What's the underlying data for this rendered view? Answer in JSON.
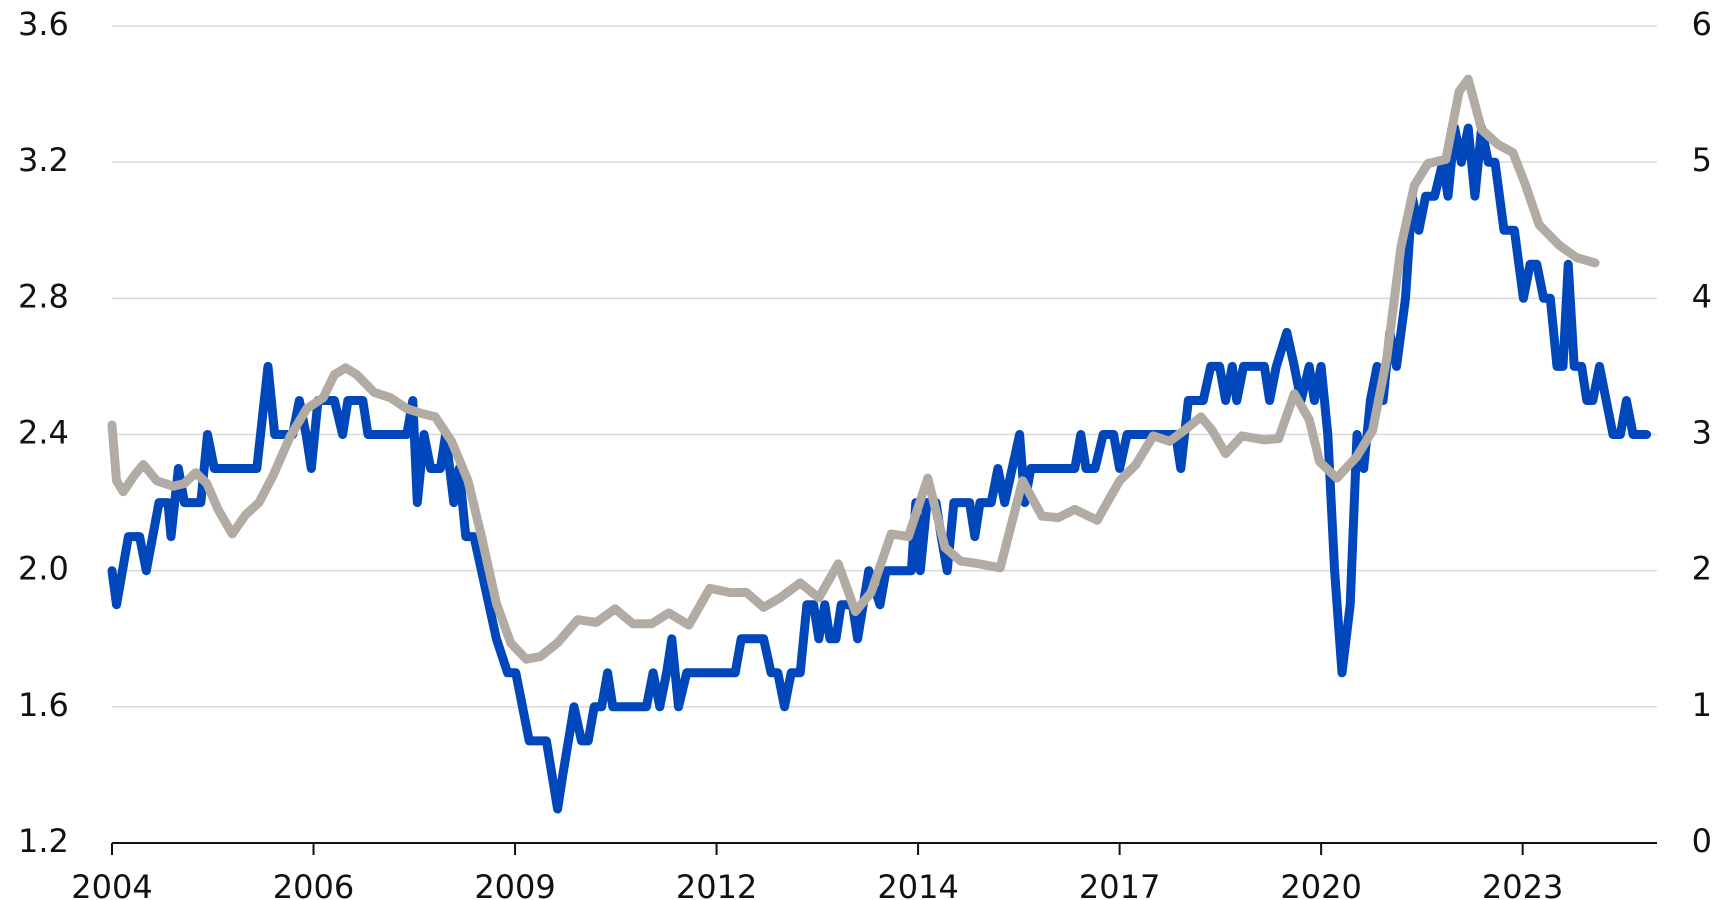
{
  "chart_data": {
    "type": "line",
    "grid": true,
    "xlim": [
      2004,
      2024.7
    ],
    "xticks": [
      {
        "value": 2004,
        "label": "2004"
      },
      {
        "value": 2006.7,
        "label": "2006"
      },
      {
        "value": 2009.4,
        "label": "2009"
      },
      {
        "value": 2012.1,
        "label": "2012"
      },
      {
        "value": 2014.8,
        "label": "2014"
      },
      {
        "value": 2017.5,
        "label": "2017"
      },
      {
        "value": 2020.2,
        "label": "2020"
      },
      {
        "value": 2022.9,
        "label": "2023"
      }
    ],
    "ylim": [
      1.2,
      3.6
    ],
    "yticks": [
      1.2,
      1.6,
      {
        "value": 2,
        "label": "2.0"
      },
      2.4,
      2.8,
      3.2,
      3.6
    ],
    "y2lim": [
      0,
      6
    ],
    "y2ticks": [
      0,
      1,
      2,
      3,
      4,
      5,
      6
    ],
    "series": [
      {
        "color": "#0047bb",
        "axis": "y",
        "x": [
          2004,
          2004.06,
          2004.22,
          2004.37,
          2004.46,
          2004.63,
          2004.75,
          2004.79,
          2004.89,
          2004.97,
          2005.19,
          2005.28,
          2005.37,
          2005.94,
          2006.09,
          2006.18,
          2006.42,
          2006.51,
          2006.6,
          2006.67,
          2006.76,
          2006.98,
          2007.09,
          2007.16,
          2007.36,
          2007.43,
          2007.95,
          2008.03,
          2008.09,
          2008.18,
          2008.27,
          2008.4,
          2008.47,
          2008.58,
          2008.65,
          2008.74,
          2008.85,
          2008.95,
          2009.15,
          2009.3,
          2009.41,
          2009.59,
          2009.82,
          2009.97,
          2010.04,
          2010.19,
          2010.29,
          2010.38,
          2010.46,
          2010.56,
          2010.64,
          2010.71,
          2011.16,
          2011.25,
          2011.34,
          2011.43,
          2011.5,
          2011.59,
          2011.7,
          2012.35,
          2012.43,
          2012.73,
          2012.83,
          2012.92,
          2013.01,
          2013.1,
          2013.22,
          2013.31,
          2013.4,
          2013.47,
          2013.55,
          2013.62,
          2013.7,
          2013.77,
          2013.92,
          2013.99,
          2014.14,
          2014.29,
          2014.37,
          2014.71,
          2014.77,
          2014.83,
          2014.92,
          2015.04,
          2015.11,
          2015.19,
          2015.28,
          2015.49,
          2015.56,
          2015.63,
          2015.78,
          2015.87,
          2015.96,
          2016.16,
          2016.23,
          2016.31,
          2016.38,
          2016.9,
          2016.98,
          2017.05,
          2017.17,
          2017.28,
          2017.42,
          2017.5,
          2017.6,
          2018.25,
          2018.32,
          2018.42,
          2018.62,
          2018.72,
          2018.84,
          2018.92,
          2019.01,
          2019.07,
          2019.16,
          2019.44,
          2019.51,
          2019.6,
          2019.74,
          2019.84,
          2019.93,
          2020.04,
          2020.11,
          2020.2,
          2020.29,
          2020.38,
          2020.48,
          2020.59,
          2020.68,
          2020.77,
          2020.86,
          2020.95,
          2021.03,
          2021.12,
          2021.21,
          2021.33,
          2021.42,
          2021.51,
          2021.6,
          2021.72,
          2021.83,
          2021.9,
          2021.99,
          2022.08,
          2022.17,
          2022.26,
          2022.35,
          2022.44,
          2022.53,
          2022.65,
          2022.79,
          2022.91,
          2023,
          2023.09,
          2023.18,
          2023.27,
          2023.36,
          2023.44,
          2023.51,
          2023.59,
          2023.69,
          2023.76,
          2023.84,
          2023.93,
          2024.02,
          2024.11,
          2024.21,
          2024.29,
          2024.38,
          2024.56
        ],
        "values": [
          2.0,
          1.9,
          2.1,
          2.1,
          2.0,
          2.2,
          2.2,
          2.1,
          2.3,
          2.2,
          2.2,
          2.4,
          2.3,
          2.3,
          2.6,
          2.4,
          2.4,
          2.5,
          2.4,
          2.3,
          2.5,
          2.5,
          2.4,
          2.5,
          2.5,
          2.4,
          2.4,
          2.5,
          2.2,
          2.4,
          2.3,
          2.3,
          2.4,
          2.2,
          2.3,
          2.1,
          2.1,
          2.0,
          1.8,
          1.7,
          1.7,
          1.5,
          1.5,
          1.3,
          1.4,
          1.6,
          1.5,
          1.5,
          1.6,
          1.6,
          1.7,
          1.6,
          1.6,
          1.7,
          1.6,
          1.7,
          1.8,
          1.6,
          1.7,
          1.7,
          1.8,
          1.8,
          1.7,
          1.7,
          1.6,
          1.7,
          1.7,
          1.9,
          1.9,
          1.8,
          1.9,
          1.8,
          1.8,
          1.9,
          1.9,
          1.8,
          2.0,
          1.9,
          2.0,
          2.0,
          2.2,
          2.0,
          2.2,
          2.2,
          2.1,
          2.0,
          2.2,
          2.2,
          2.1,
          2.2,
          2.2,
          2.3,
          2.2,
          2.4,
          2.2,
          2.3,
          2.3,
          2.3,
          2.4,
          2.3,
          2.3,
          2.4,
          2.4,
          2.3,
          2.4,
          2.4,
          2.3,
          2.5,
          2.5,
          2.6,
          2.6,
          2.5,
          2.6,
          2.5,
          2.6,
          2.6,
          2.5,
          2.6,
          2.7,
          2.6,
          2.5,
          2.6,
          2.5,
          2.6,
          2.4,
          2.0,
          1.7,
          1.9,
          2.4,
          2.3,
          2.5,
          2.6,
          2.5,
          2.7,
          2.6,
          2.8,
          3.1,
          3.0,
          3.1,
          3.1,
          3.2,
          3.1,
          3.3,
          3.2,
          3.3,
          3.1,
          3.3,
          3.2,
          3.2,
          3.0,
          3.0,
          2.8,
          2.9,
          2.9,
          2.8,
          2.8,
          2.6,
          2.6,
          2.9,
          2.6,
          2.6,
          2.5,
          2.5,
          2.6,
          2.5,
          2.4,
          2.4,
          2.5,
          2.4,
          2.4
        ]
      },
      {
        "color": "#b1aba3",
        "axis": "y2",
        "x": [
          2004,
          2004.06,
          2004.15,
          2004.3,
          2004.42,
          2004.6,
          2004.82,
          2004.97,
          2005.12,
          2005.27,
          2005.42,
          2005.61,
          2005.79,
          2005.97,
          2006.16,
          2006.39,
          2006.61,
          2006.83,
          2006.98,
          2007.13,
          2007.28,
          2007.51,
          2007.73,
          2007.95,
          2008.18,
          2008.33,
          2008.55,
          2008.77,
          2008.95,
          2009.15,
          2009.34,
          2009.55,
          2009.74,
          2009.97,
          2010.24,
          2010.49,
          2010.74,
          2010.98,
          2011.23,
          2011.46,
          2011.73,
          2012.01,
          2012.28,
          2012.5,
          2012.73,
          2012.95,
          2013.22,
          2013.47,
          2013.73,
          2013.96,
          2014.17,
          2014.44,
          2014.67,
          2014.93,
          2015.16,
          2015.37,
          2015.63,
          2015.9,
          2016.2,
          2016.46,
          2016.68,
          2016.9,
          2017.2,
          2017.5,
          2017.72,
          2017.95,
          2018.17,
          2018.39,
          2018.59,
          2018.74,
          2018.92,
          2019.14,
          2019.44,
          2019.63,
          2019.84,
          2020.04,
          2020.18,
          2020.41,
          2020.68,
          2020.89,
          2021.08,
          2021.27,
          2021.45,
          2021.63,
          2021.87,
          2022.05,
          2022.17,
          2022.35,
          2022.57,
          2022.77,
          2022.94,
          2023.12,
          2023.39,
          2023.62,
          2023.87
        ],
        "values": [
          3.07,
          2.66,
          2.58,
          2.7,
          2.78,
          2.66,
          2.62,
          2.64,
          2.72,
          2.64,
          2.45,
          2.27,
          2.41,
          2.5,
          2.7,
          2.99,
          3.19,
          3.27,
          3.44,
          3.49,
          3.44,
          3.31,
          3.27,
          3.19,
          3.15,
          3.13,
          2.95,
          2.66,
          2.25,
          1.76,
          1.47,
          1.35,
          1.37,
          1.47,
          1.64,
          1.62,
          1.72,
          1.61,
          1.61,
          1.69,
          1.6,
          1.87,
          1.84,
          1.84,
          1.73,
          1.8,
          1.91,
          1.8,
          2.05,
          1.7,
          1.84,
          2.27,
          2.25,
          2.68,
          2.17,
          2.07,
          2.05,
          2.02,
          2.66,
          2.4,
          2.39,
          2.45,
          2.37,
          2.66,
          2.78,
          2.99,
          2.95,
          3.04,
          3.13,
          3.03,
          2.86,
          2.99,
          2.96,
          2.97,
          3.3,
          3.11,
          2.8,
          2.68,
          2.84,
          3.03,
          3.56,
          4.38,
          4.83,
          4.99,
          5.02,
          5.52,
          5.61,
          5.24,
          5.13,
          5.07,
          4.83,
          4.54,
          4.39,
          4.3,
          4.26
        ]
      }
    ]
  }
}
